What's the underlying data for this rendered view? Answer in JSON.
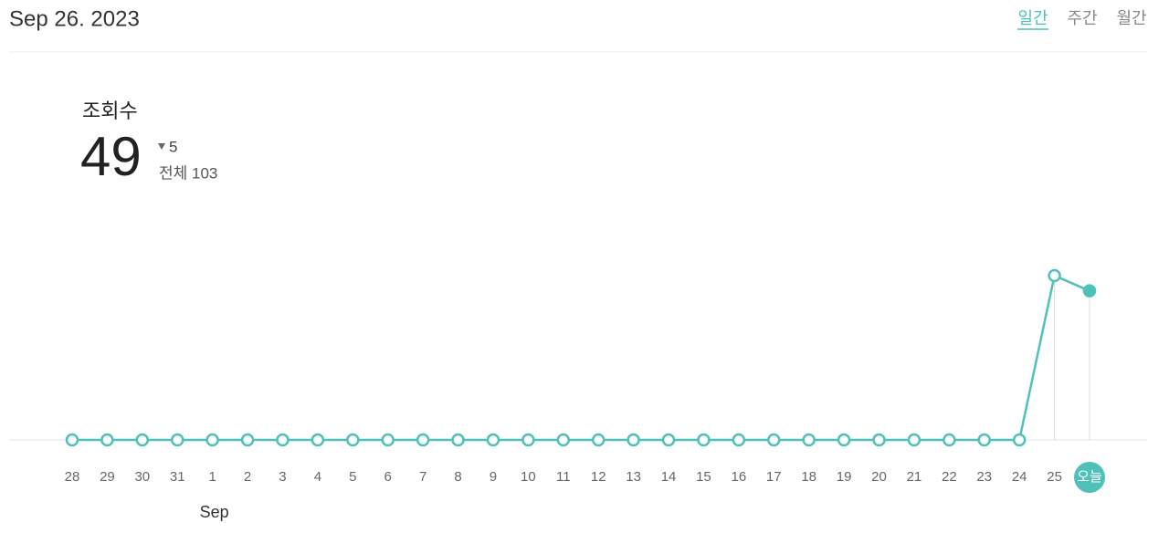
{
  "header": {
    "date": "Sep 26. 2023",
    "tabs": [
      "일간",
      "주간",
      "월간"
    ]
  },
  "summary": {
    "label": "조회수",
    "value": 49,
    "change": 5,
    "total_label": "전체 103"
  },
  "chart_data": {
    "type": "line",
    "categories": [
      "28",
      "29",
      "30",
      "31",
      "1",
      "2",
      "3",
      "4",
      "5",
      "6",
      "7",
      "8",
      "9",
      "10",
      "11",
      "12",
      "13",
      "14",
      "15",
      "16",
      "17",
      "18",
      "19",
      "20",
      "21",
      "22",
      "23",
      "24",
      "25",
      "오늘"
    ],
    "values": [
      0,
      0,
      0,
      0,
      0,
      0,
      0,
      0,
      0,
      0,
      0,
      0,
      0,
      0,
      0,
      0,
      0,
      0,
      0,
      0,
      0,
      0,
      0,
      0,
      0,
      0,
      0,
      0,
      54,
      49
    ],
    "color": "#4fc1b9",
    "ylim": [
      0,
      54
    ],
    "annotations": [
      {
        "text": "Sep",
        "at": "1"
      }
    ]
  }
}
